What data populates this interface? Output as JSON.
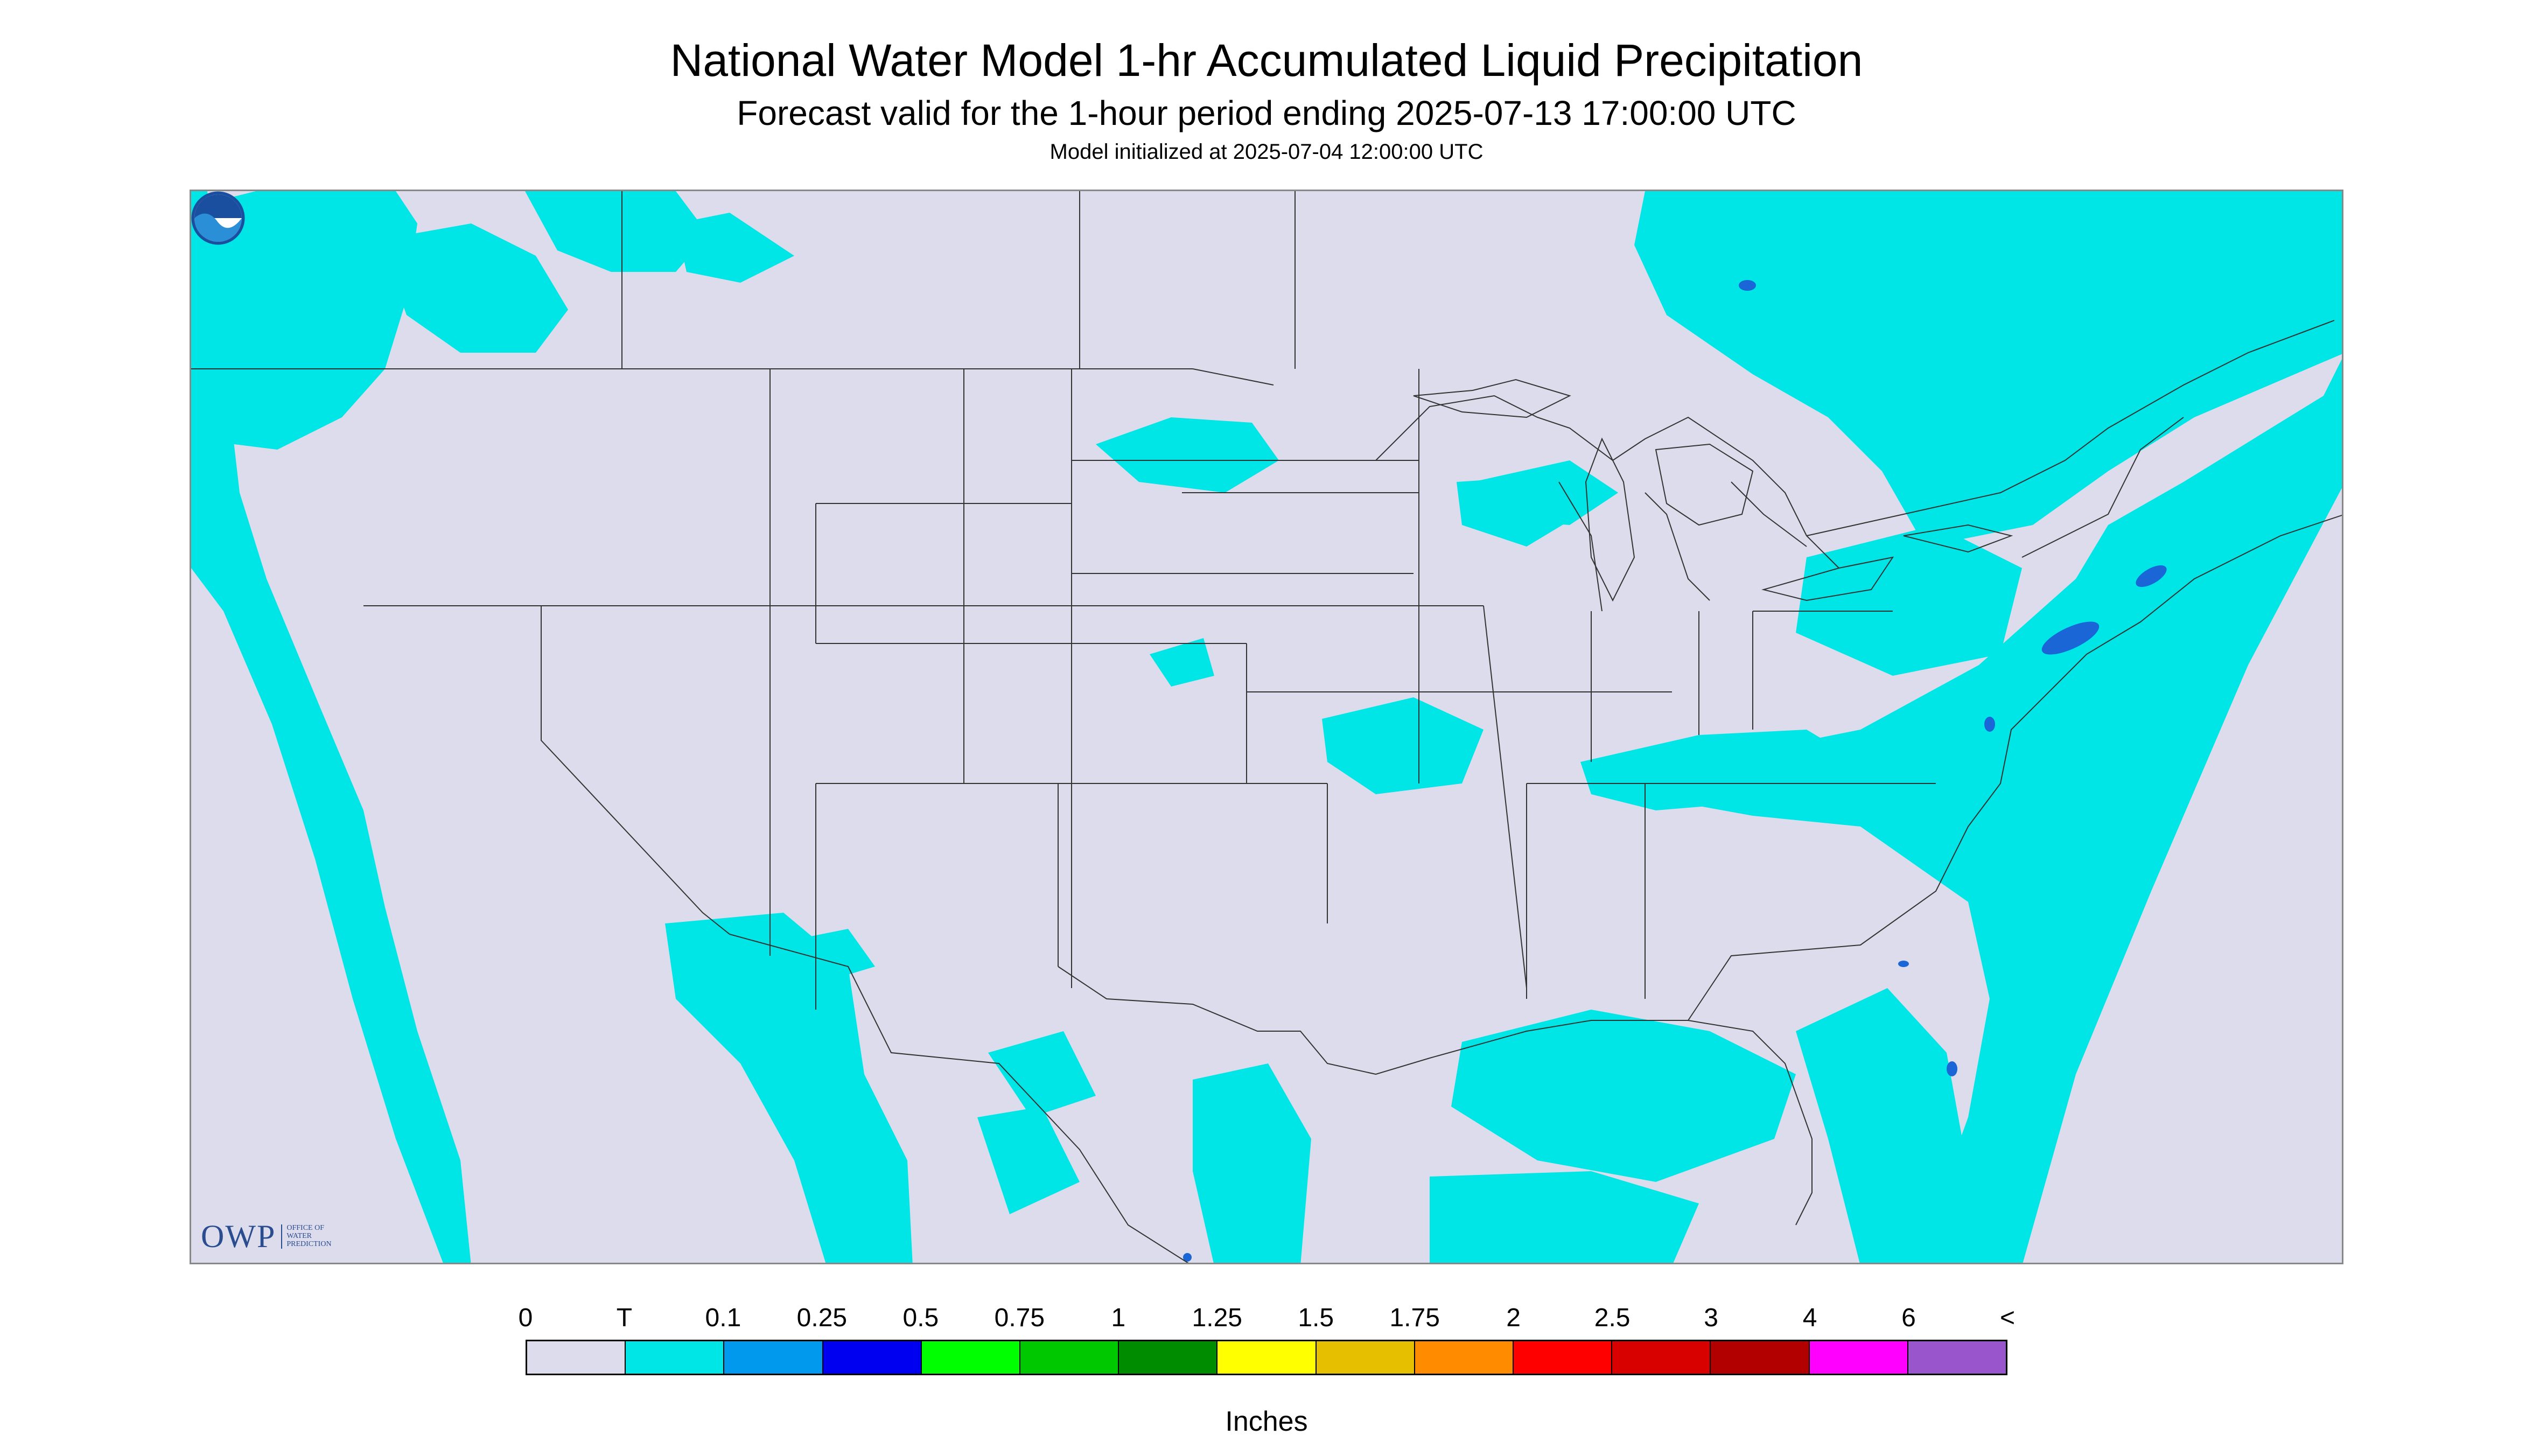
{
  "header": {
    "title": "National Water Model 1-hr Accumulated Liquid Precipitation",
    "subtitle": "Forecast valid for the 1-hour period ending 2025-07-13 17:00:00 UTC",
    "init": "Model initialized at 2025-07-04 12:00:00 UTC"
  },
  "map": {
    "background_color": "#dcdcec",
    "precip_color": "#00e5e5",
    "heavy_color": "#1a66d6",
    "outline_color": "#333333"
  },
  "logos": {
    "owp_mark": "OWP",
    "owp_line1": "OFFICE OF",
    "owp_line2": "WATER",
    "owp_line3": "PREDICTION",
    "noaa_icon": "noaa-icon"
  },
  "legend": {
    "labels": [
      "0",
      "T",
      "0.1",
      "0.25",
      "0.5",
      "0.75",
      "1",
      "1.25",
      "1.5",
      "1.75",
      "2",
      "2.5",
      "3",
      "4",
      "6",
      "<"
    ],
    "colors": [
      "#dcdcec",
      "#00e5e5",
      "#0099ee",
      "#0000f0",
      "#00ff00",
      "#00c800",
      "#008c00",
      "#ffff00",
      "#e6bf00",
      "#ff8c00",
      "#ff0000",
      "#d90000",
      "#b20000",
      "#ff00ff",
      "#9955cc"
    ],
    "units": "Inches"
  }
}
